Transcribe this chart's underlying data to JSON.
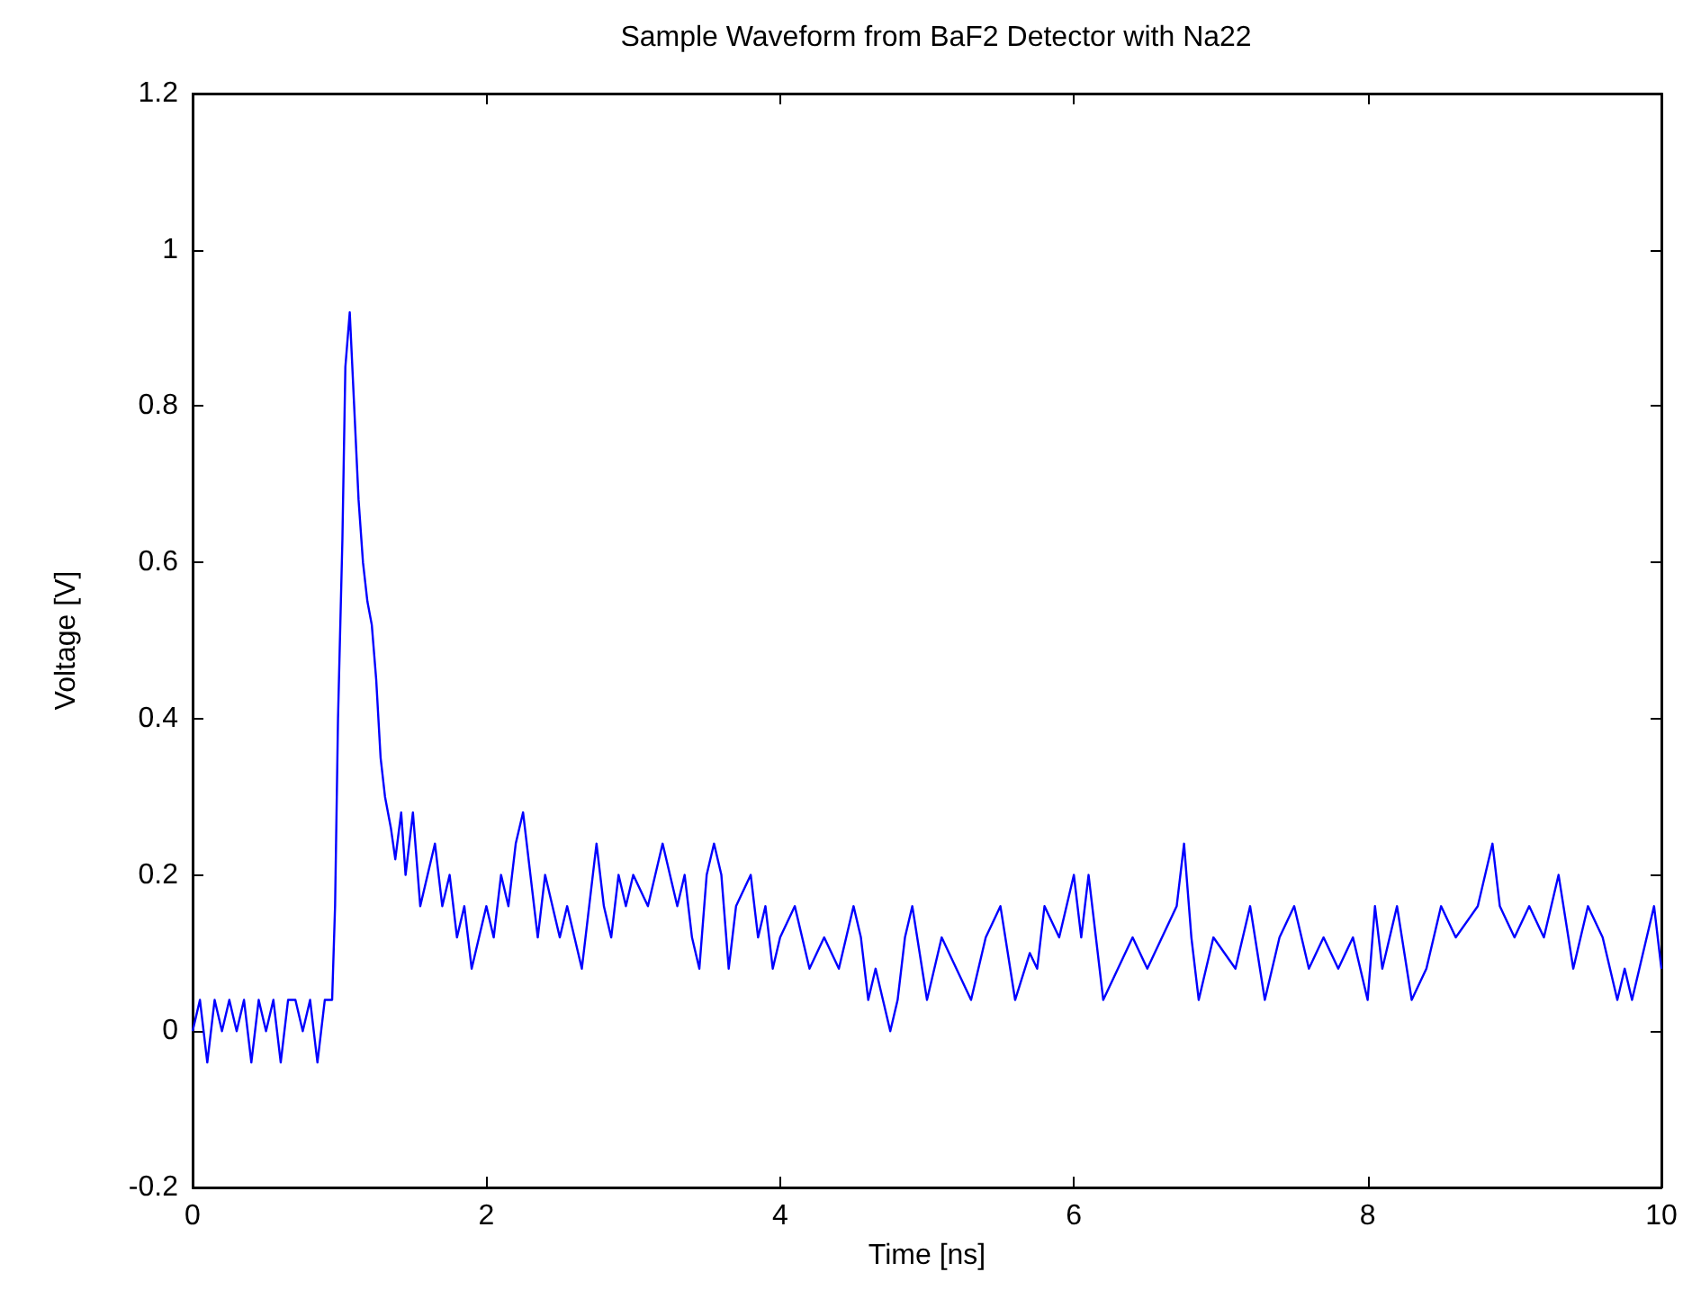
{
  "chart_data": {
    "type": "line",
    "title": "Sample Waveform from BaF2 Detector with Na22",
    "xlabel": "Time [ns]",
    "ylabel": "Voltage [V]",
    "xlim": [
      0,
      10
    ],
    "xticks": [
      0,
      2,
      4,
      6,
      8,
      10
    ],
    "ylim": [
      -0.2,
      1.2
    ],
    "yticks": [
      -0.2,
      0,
      0.2,
      0.4,
      0.6,
      0.8,
      1,
      1.2
    ],
    "grid": false,
    "marker": "none",
    "line_style": "solid",
    "series": [
      {
        "color": "#0000ff",
        "x": [
          0,
          0.05,
          0.1,
          0.15,
          0.2,
          0.25,
          0.3,
          0.35,
          0.4,
          0.45,
          0.5,
          0.55,
          0.6,
          0.65,
          0.7,
          0.75,
          0.8,
          0.85,
          0.9,
          0.95,
          0.97,
          0.99,
          1.02,
          1.04,
          1.07,
          1.1,
          1.13,
          1.16,
          1.19,
          1.22,
          1.25,
          1.28,
          1.31,
          1.35,
          1.38,
          1.42,
          1.45,
          1.5,
          1.55,
          1.6,
          1.65,
          1.7,
          1.75,
          1.8,
          1.85,
          1.9,
          1.95,
          2.0,
          2.05,
          2.1,
          2.15,
          2.2,
          2.25,
          2.3,
          2.35,
          2.4,
          2.45,
          2.5,
          2.55,
          2.6,
          2.65,
          2.7,
          2.75,
          2.8,
          2.85,
          2.9,
          2.95,
          3.0,
          3.1,
          3.2,
          3.25,
          3.3,
          3.35,
          3.4,
          3.45,
          3.5,
          3.55,
          3.6,
          3.65,
          3.7,
          3.8,
          3.85,
          3.9,
          3.95,
          4.0,
          4.1,
          4.2,
          4.3,
          4.4,
          4.5,
          4.55,
          4.6,
          4.65,
          4.7,
          4.75,
          4.8,
          4.85,
          4.9,
          5.0,
          5.1,
          5.2,
          5.3,
          5.4,
          5.5,
          5.6,
          5.7,
          5.75,
          5.8,
          5.9,
          6.0,
          6.05,
          6.1,
          6.2,
          6.3,
          6.4,
          6.5,
          6.6,
          6.7,
          6.75,
          6.8,
          6.85,
          6.95,
          7.1,
          7.2,
          7.3,
          7.4,
          7.5,
          7.6,
          7.7,
          7.8,
          7.9,
          8.0,
          8.05,
          8.1,
          8.2,
          8.3,
          8.4,
          8.5,
          8.6,
          8.75,
          8.85,
          8.9,
          9.0,
          9.1,
          9.2,
          9.3,
          9.4,
          9.5,
          9.6,
          9.7,
          9.75,
          9.8,
          9.85,
          9.9,
          9.95,
          10
        ],
        "values": [
          0,
          0.04,
          -0.04,
          0.04,
          0,
          0.04,
          0,
          0.04,
          -0.04,
          0.04,
          0,
          0.04,
          -0.04,
          0.04,
          0.04,
          0,
          0.04,
          -0.04,
          0.04,
          0.04,
          0.16,
          0.4,
          0.63,
          0.85,
          0.92,
          0.8,
          0.68,
          0.6,
          0.55,
          0.52,
          0.45,
          0.35,
          0.3,
          0.26,
          0.22,
          0.28,
          0.2,
          0.28,
          0.16,
          0.2,
          0.24,
          0.16,
          0.2,
          0.12,
          0.16,
          0.08,
          0.12,
          0.16,
          0.12,
          0.2,
          0.16,
          0.24,
          0.28,
          0.2,
          0.12,
          0.2,
          0.16,
          0.12,
          0.16,
          0.12,
          0.08,
          0.16,
          0.24,
          0.16,
          0.12,
          0.2,
          0.16,
          0.2,
          0.16,
          0.24,
          0.2,
          0.16,
          0.2,
          0.12,
          0.08,
          0.2,
          0.24,
          0.2,
          0.08,
          0.16,
          0.2,
          0.12,
          0.16,
          0.08,
          0.12,
          0.16,
          0.08,
          0.12,
          0.08,
          0.16,
          0.12,
          0.04,
          0.08,
          0.04,
          0,
          0.04,
          0.12,
          0.16,
          0.04,
          0.12,
          0.08,
          0.04,
          0.12,
          0.16,
          0.04,
          0.1,
          0.08,
          0.16,
          0.12,
          0.2,
          0.12,
          0.2,
          0.04,
          0.08,
          0.12,
          0.08,
          0.12,
          0.16,
          0.24,
          0.12,
          0.04,
          0.12,
          0.08,
          0.16,
          0.04,
          0.12,
          0.16,
          0.08,
          0.12,
          0.08,
          0.12,
          0.04,
          0.16,
          0.08,
          0.16,
          0.04,
          0.08,
          0.16,
          0.12,
          0.16,
          0.24,
          0.16,
          0.12,
          0.16,
          0.12,
          0.2,
          0.08,
          0.16,
          0.12,
          0.04,
          0.08,
          0.04,
          0.08,
          0.12,
          0.16,
          0.08
        ]
      }
    ]
  }
}
